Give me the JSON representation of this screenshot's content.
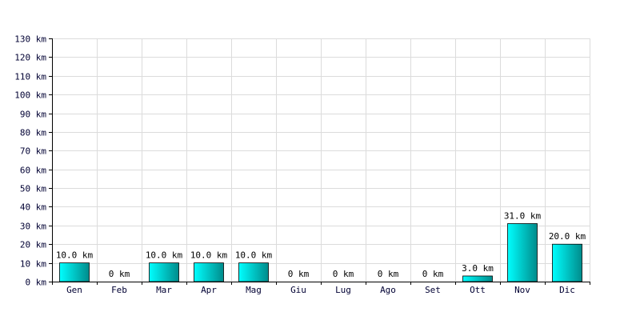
{
  "chart_data": {
    "type": "bar",
    "title": "",
    "xlabel": "",
    "ylabel": "",
    "unit": "km",
    "categories": [
      "Gen",
      "Feb",
      "Mar",
      "Apr",
      "Mag",
      "Giu",
      "Lug",
      "Ago",
      "Set",
      "Ott",
      "Nov",
      "Dic"
    ],
    "values": [
      10.0,
      0,
      10.0,
      10.0,
      10.0,
      0,
      0,
      0,
      0,
      3.0,
      31.0,
      20.0
    ],
    "data_labels": [
      "10.0 km",
      "0 km",
      "10.0 km",
      "10.0 km",
      "10.0 km",
      "0 km",
      "0 km",
      "0 km",
      "0 km",
      "3.0 km",
      "31.0 km",
      "20.0 km"
    ],
    "y_ticks": [
      0,
      10,
      20,
      30,
      40,
      50,
      60,
      70,
      80,
      90,
      100,
      110,
      120,
      130
    ],
    "y_tick_labels": [
      "0 km",
      "10 km",
      "20 km",
      "30 km",
      "40 km",
      "50 km",
      "60 km",
      "70 km",
      "80 km",
      "90 km",
      "100 km",
      "110 km",
      "120 km",
      "130 km"
    ],
    "ylim": [
      0,
      130
    ],
    "grid": true,
    "bar_color_light": "#00ffff",
    "bar_color_dark": "#008b8b"
  }
}
